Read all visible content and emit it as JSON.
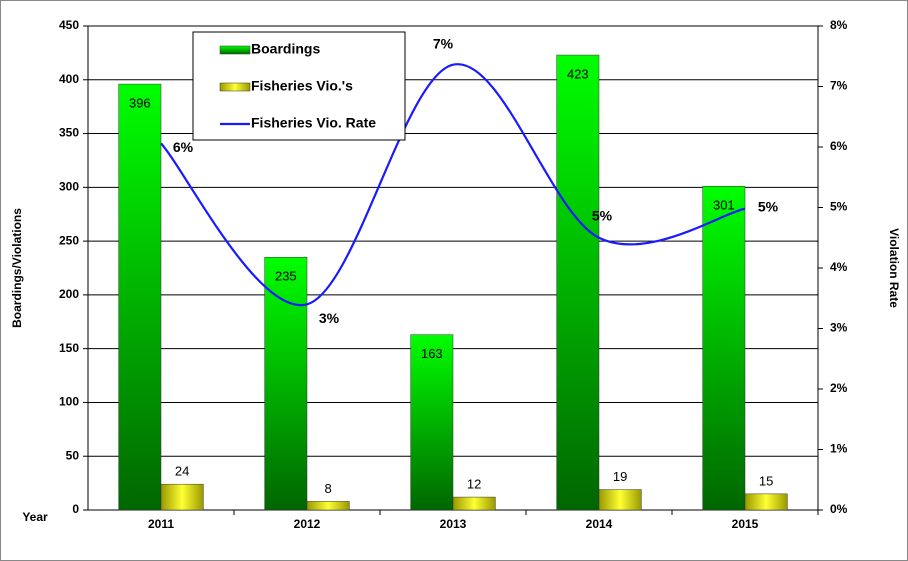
{
  "chart_data": {
    "type": "bar",
    "categories": [
      "2011",
      "2012",
      "2013",
      "2014",
      "2015"
    ],
    "x_label": "Year",
    "y_label": "Boardings/Violations",
    "y2_label": "Violation Rate",
    "ylim": [
      0,
      450
    ],
    "yticks": [
      0,
      50,
      100,
      150,
      200,
      250,
      300,
      350,
      400,
      450
    ],
    "y2lim": [
      0,
      8
    ],
    "y2ticks": [
      {
        "value": 0,
        "label": "0%"
      },
      {
        "value": 1,
        "label": "1%"
      },
      {
        "value": 2,
        "label": "2%"
      },
      {
        "value": 3,
        "label": "3%"
      },
      {
        "value": 4,
        "label": "4%"
      },
      {
        "value": 5,
        "label": "5%"
      },
      {
        "value": 6,
        "label": "6%"
      },
      {
        "value": 7,
        "label": "7%"
      },
      {
        "value": 8,
        "label": "8%"
      }
    ],
    "grid": true,
    "series": [
      {
        "name": "Boardings",
        "type": "bar",
        "color": "#00cc00",
        "values": [
          396,
          235,
          163,
          423,
          301
        ]
      },
      {
        "name": "Fisheries Vio.'s",
        "type": "bar",
        "color": "#e6e600",
        "values": [
          24,
          8,
          12,
          19,
          15
        ]
      },
      {
        "name": "Fisheries Vio. Rate",
        "type": "line",
        "axis": "y2",
        "color": "#1a1aff",
        "values": [
          6.06,
          3.4,
          7.36,
          4.5,
          4.98
        ],
        "value_labels": [
          "6%",
          "3%",
          "7%",
          "5%",
          "5%"
        ]
      }
    ]
  }
}
